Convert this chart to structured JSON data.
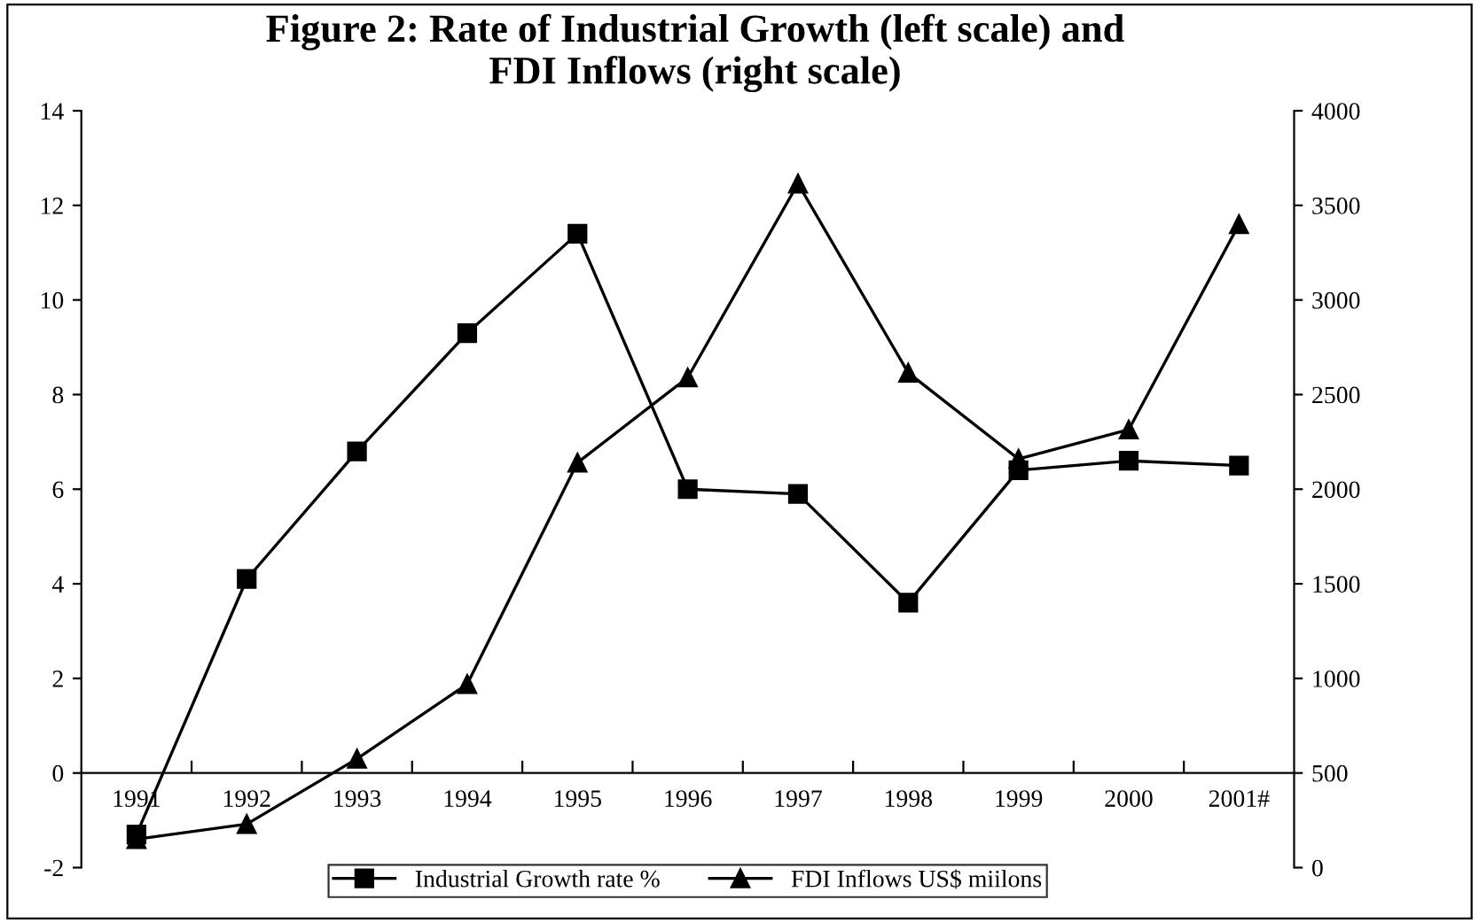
{
  "chart_data": {
    "type": "line",
    "title": "Figure 2: Rate of Industrial Growth (left scale) and\nFDI Inflows (right scale)",
    "categories": [
      "1991",
      "1992",
      "1993",
      "1994",
      "1995",
      "1996",
      "1997",
      "1998",
      "1999",
      "2000",
      "2001#"
    ],
    "series": [
      {
        "name": "Industrial Growth rate %",
        "color": "#000000",
        "marker": "square",
        "values": [
          -1.3,
          4.1,
          6.8,
          9.3,
          11.4,
          6.0,
          5.9,
          3.6,
          6.4,
          6.6,
          6.5
        ]
      },
      {
        "name": "FDI Inflows US$ miilons",
        "color": "#000000",
        "marker": "triangle",
        "axis": "y2",
        "values": [
          150,
          230,
          575,
          970,
          2140,
          2590,
          3615,
          2615,
          2160,
          2315,
          3400
        ]
      }
    ],
    "ylim": [
      -2,
      14
    ],
    "yticks": [
      -2,
      0,
      2,
      4,
      6,
      8,
      10,
      12,
      14
    ],
    "y2lim": [
      0,
      4000
    ],
    "y2ticks": [
      0,
      500,
      1000,
      1500,
      2000,
      2500,
      3000,
      3500,
      4000
    ],
    "grid": false,
    "legend": "bottom",
    "line_style": "solid"
  }
}
